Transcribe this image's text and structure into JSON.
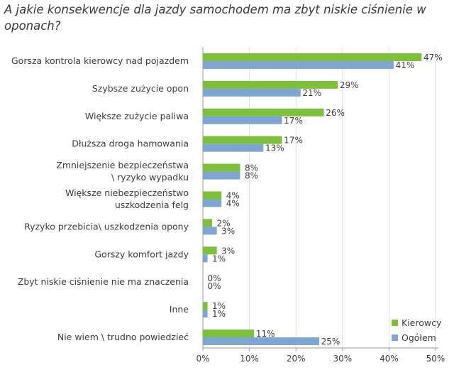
{
  "chart_data": {
    "type": "bar",
    "orientation": "horizontal",
    "title": "A jakie konsekwencje dla jazdy samochodem ma zbyt niskie ciśnienie w oponach?",
    "categories": [
      [
        "Gorsza kontrola kierowcy nad pojazdem"
      ],
      [
        "Szybsze zużycie opon"
      ],
      [
        "Większe zużycie paliwa"
      ],
      [
        "Dłuższa droga hamowania"
      ],
      [
        "Zmniejszenie bezpieczeństwa",
        "\\ ryzyko wypadku"
      ],
      [
        "Większe niebezpieczeństwo",
        "uszkodzenia felg"
      ],
      [
        "Ryzyko przebicia\\ uszkodzenia opony"
      ],
      [
        "Gorszy komfort jazdy"
      ],
      [
        "Zbyt niskie ciśnienie nie ma znaczenia"
      ],
      [
        "Inne"
      ],
      [
        "Nie wiem \\ trudno powiedzieć"
      ]
    ],
    "series": [
      {
        "name": "Kierowcy",
        "color": "#7ebf3c",
        "values": [
          47,
          29,
          26,
          17,
          8,
          4,
          2,
          3,
          0,
          1,
          11
        ]
      },
      {
        "name": "Ogółem",
        "color": "#7fa5d3",
        "values": [
          41,
          21,
          17,
          13,
          8,
          4,
          3,
          1,
          0,
          1,
          25
        ]
      }
    ],
    "xlim": [
      0,
      50
    ],
    "xticks": [
      "0%",
      "10%",
      "20%",
      "30%",
      "40%",
      "50%"
    ],
    "value_suffix": "%",
    "legend_position": "bottom-right"
  }
}
